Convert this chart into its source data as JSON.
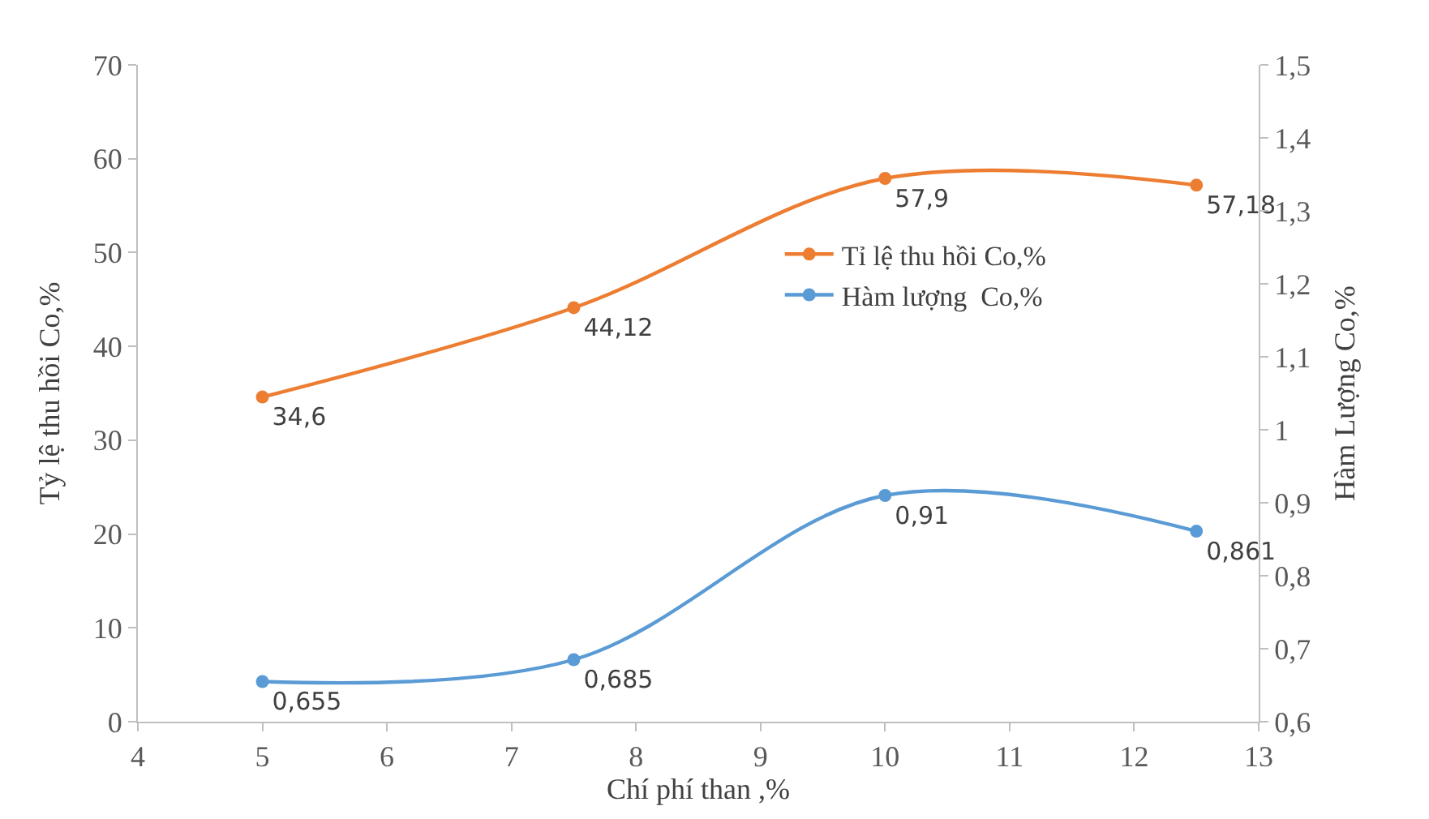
{
  "chart_data": {
    "type": "line",
    "x": [
      5,
      7.5,
      10,
      12.5
    ],
    "xlabel": "Chí phí than ,%",
    "ylabel": "Tỷ lệ thu hồi Co,%",
    "y2label": "Hàm Lượng Co,%",
    "series": [
      {
        "name": "Tỉ lệ thu hồi Co,%",
        "color": "#ed7d31",
        "values": [
          34.6,
          44.12,
          57.9,
          57.18
        ],
        "value_labels": [
          "34,6",
          "44,12",
          "57,9",
          "57,18"
        ]
      },
      {
        "name": "Hàm lượng  Co,%",
        "color": "#5b9bd5",
        "axis": "y2",
        "values": [
          0.655,
          0.685,
          0.91,
          0.861
        ],
        "value_labels": [
          "0,655",
          "0,685",
          "0,91",
          "0,861"
        ]
      }
    ],
    "xlim": [
      4,
      13
    ],
    "xticks": [
      4,
      5,
      6,
      7,
      8,
      9,
      10,
      11,
      12,
      13
    ],
    "ylim": [
      0,
      70
    ],
    "yticks": [
      0,
      10,
      20,
      30,
      40,
      50,
      60,
      70
    ],
    "y2lim": [
      0.6,
      1.5
    ],
    "y2ticks": [
      {
        "value": 0.6,
        "label": "0,6"
      },
      {
        "value": 0.7,
        "label": "0,7"
      },
      {
        "value": 0.8,
        "label": "0,8"
      },
      {
        "value": 0.9,
        "label": "0,9"
      },
      1,
      {
        "value": 1.1,
        "label": "1,1"
      },
      {
        "value": 1.2,
        "label": "1,2"
      },
      {
        "value": 1.3,
        "label": "1,3"
      },
      {
        "value": 1.4,
        "label": "1,4"
      },
      {
        "value": 1.5,
        "label": "1,5"
      }
    ],
    "legend": "right",
    "marker": "circle",
    "line_style": "solid"
  }
}
